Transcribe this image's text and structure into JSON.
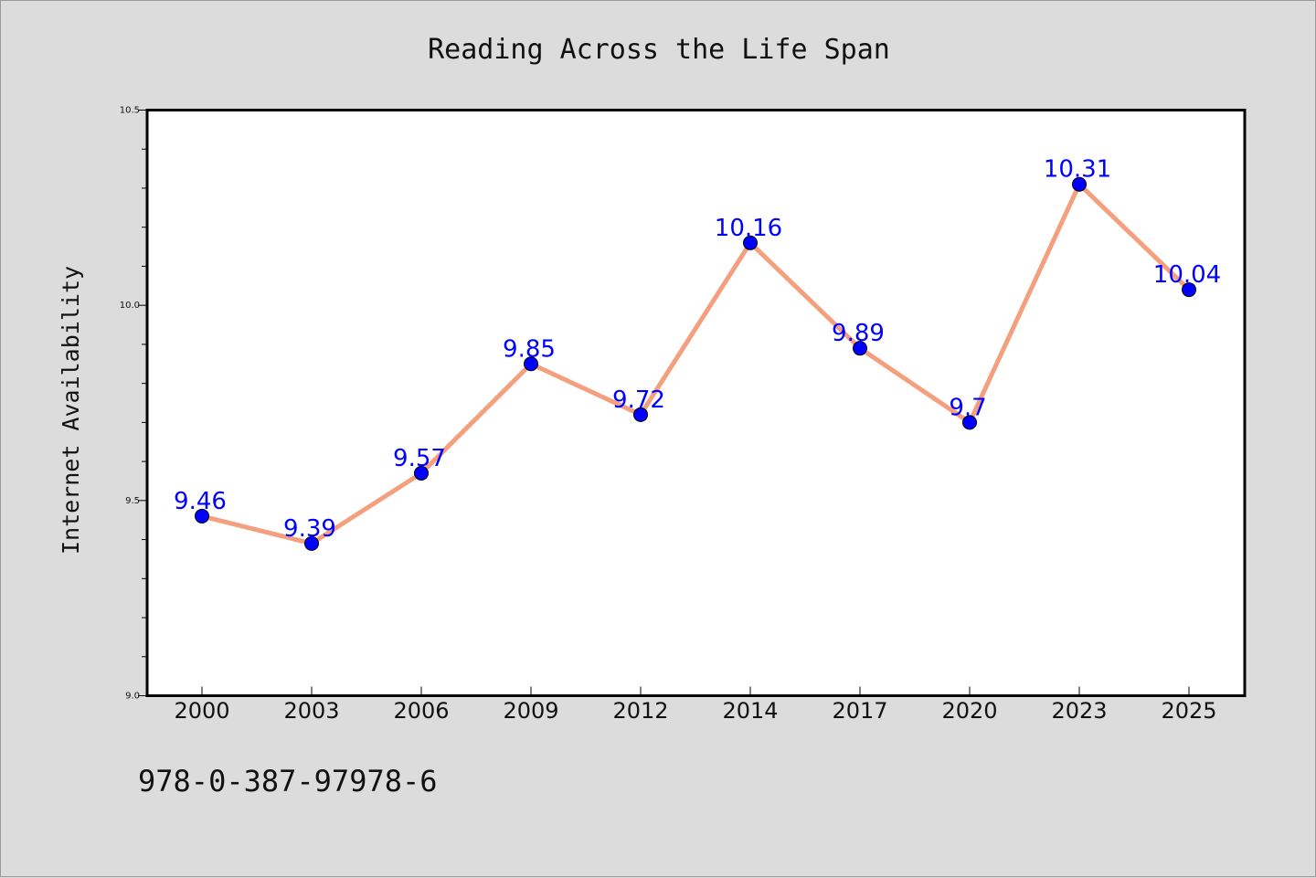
{
  "chart_data": {
    "type": "line",
    "title": "Reading Across the Life Span",
    "xlabel": "",
    "ylabel": "Internet Availability",
    "categories": [
      "2000",
      "2003",
      "2006",
      "2009",
      "2012",
      "2014",
      "2017",
      "2020",
      "2023",
      "2025"
    ],
    "series": [
      {
        "values": [
          9.46,
          9.39,
          9.57,
          9.85,
          9.72,
          10.16,
          9.89,
          9.7,
          10.31,
          10.04
        ],
        "data_labels": [
          "9.46",
          "9.39",
          "9.57",
          "9.85",
          "9.72",
          "10.16",
          "9.89",
          "9.7",
          "10.31",
          "10.04"
        ]
      }
    ],
    "ylim": [
      9.0,
      10.5
    ],
    "y_major_ticks": [
      "9.0",
      "9.5",
      "10.0",
      "10.5"
    ],
    "y_minor_step": 0.1,
    "grid": false,
    "line_color": "#f4a07e",
    "marker_color": "#0000ff",
    "data_label_color": "#0000ff",
    "background_color": "#dcdcdc",
    "plot_background_color": "#ffffff"
  },
  "footer": {
    "code": "978-0-387-97978-6"
  }
}
